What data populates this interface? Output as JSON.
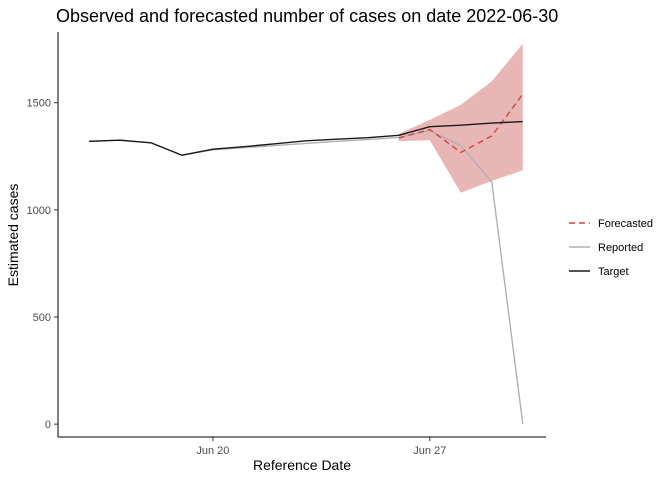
{
  "chart_data": {
    "type": "line",
    "title": "Observed and forecasted number of cases on date 2022-06-30",
    "xlabel": "Reference Date",
    "ylabel": "Estimated cases",
    "x_dates": [
      "2022-06-16",
      "2022-06-17",
      "2022-06-18",
      "2022-06-19",
      "2022-06-20",
      "2022-06-21",
      "2022-06-22",
      "2022-06-23",
      "2022-06-24",
      "2022-06-25",
      "2022-06-26",
      "2022-06-27",
      "2022-06-28",
      "2022-06-29",
      "2022-06-30"
    ],
    "x_tick_labels": [
      {
        "date": "2022-06-20",
        "label": "Jun 20"
      },
      {
        "date": "2022-06-27",
        "label": "Jun 27"
      }
    ],
    "y_ticks": [
      0,
      500,
      1000,
      1500
    ],
    "ylim": [
      -60,
      1830
    ],
    "xlim": [
      "2022-06-15T00:00",
      "2022-06-30T18:00"
    ],
    "grid": false,
    "legend_position": "right",
    "series": [
      {
        "name": "Forecasted",
        "style": "dashed",
        "color": "#d6453d",
        "x": [
          "2022-06-26",
          "2022-06-27",
          "2022-06-28",
          "2022-06-29",
          "2022-06-30"
        ],
        "values": [
          1335,
          1375,
          1268,
          1345,
          1540
        ]
      },
      {
        "name": "Reported",
        "style": "solid",
        "color": "#b0b0b0",
        "x": [
          "2022-06-16",
          "2022-06-17",
          "2022-06-18",
          "2022-06-19",
          "2022-06-20",
          "2022-06-21",
          "2022-06-22",
          "2022-06-23",
          "2022-06-24",
          "2022-06-25",
          "2022-06-26",
          "2022-06-27",
          "2022-06-28",
          "2022-06-29",
          "2022-06-30"
        ],
        "values": [
          1320,
          1325,
          1313,
          1255,
          1280,
          1290,
          1300,
          1310,
          1320,
          1328,
          1338,
          1370,
          1300,
          1130,
          2
        ]
      },
      {
        "name": "Target",
        "style": "solid",
        "color": "#1a1a1a",
        "x": [
          "2022-06-16",
          "2022-06-17",
          "2022-06-18",
          "2022-06-19",
          "2022-06-20",
          "2022-06-21",
          "2022-06-22",
          "2022-06-23",
          "2022-06-24",
          "2022-06-25",
          "2022-06-26",
          "2022-06-27",
          "2022-06-28",
          "2022-06-29",
          "2022-06-30"
        ],
        "values": [
          1320,
          1325,
          1313,
          1255,
          1283,
          1295,
          1308,
          1322,
          1330,
          1337,
          1348,
          1388,
          1395,
          1405,
          1412
        ]
      }
    ],
    "forecast_interval": {
      "color": "#e9b6b6",
      "x": [
        "2022-06-26",
        "2022-06-27",
        "2022-06-28",
        "2022-06-29",
        "2022-06-30"
      ],
      "lower": [
        1320,
        1325,
        1080,
        1135,
        1185
      ],
      "upper": [
        1355,
        1420,
        1490,
        1600,
        1775
      ]
    }
  }
}
